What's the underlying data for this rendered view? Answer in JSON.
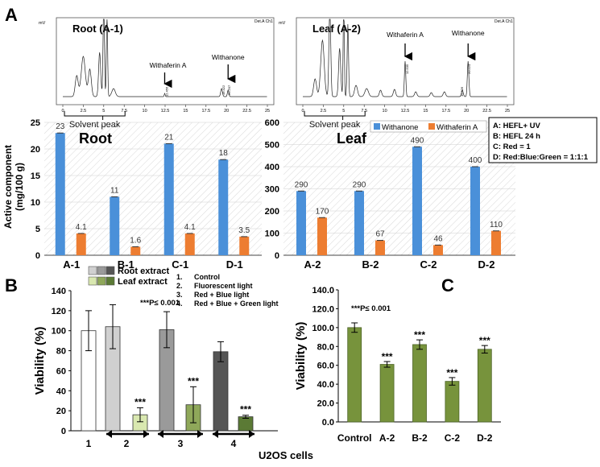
{
  "panels": {
    "A": "A",
    "B": "B",
    "C": "C"
  },
  "chromatograms": [
    {
      "title": "Root (A-1)",
      "detector": "Det.A Ch1",
      "unit": "mV",
      "xticks": [
        "0",
        "2.5",
        "5",
        "7.5",
        "10",
        "12.5",
        "15",
        "17.5",
        "20",
        "22.5",
        "25"
      ],
      "peak_labels": [
        {
          "name": "Withaferin A",
          "rt": "12.456"
        },
        {
          "name": "Withanone",
          "rt": "20.207"
        }
      ],
      "extra_rt": "19.422",
      "solvent_label": "Solvent peak"
    },
    {
      "title": "Leaf (A-2)",
      "detector": "Det.A Ch1",
      "unit": "mV",
      "xticks": [
        "0",
        "2.5",
        "5",
        "7.5",
        "10",
        "12.5",
        "15",
        "17.5",
        "20",
        "22.5",
        "25"
      ],
      "peak_labels": [
        {
          "name": "Withaferin A",
          "rt": "12.535"
        },
        {
          "name": "Withanone",
          "rt": "20.224"
        }
      ],
      "extra_rt": "19.526",
      "solvent_label": "Solvent peak"
    }
  ],
  "chart_data": [
    {
      "id": "A-root",
      "type": "bar",
      "title": "Root",
      "ylabel": "Active component (mg/100 g)",
      "categories": [
        "A-1",
        "B-1",
        "C-1",
        "D-1"
      ],
      "ylim": [
        0,
        25
      ],
      "yticks": [
        0,
        5,
        10,
        15,
        20,
        25
      ],
      "series": [
        {
          "name": "Withanone",
          "color": "#4a90d9",
          "values": [
            23,
            11,
            21,
            18
          ],
          "labels": [
            "23",
            "11",
            "21",
            "18"
          ]
        },
        {
          "name": "Withaferin A",
          "color": "#ed7d31",
          "values": [
            4.1,
            1.6,
            4.1,
            3.5
          ],
          "labels": [
            "4.1",
            "1.6",
            "4.1",
            "3.5"
          ]
        }
      ]
    },
    {
      "id": "A-leaf",
      "type": "bar",
      "title": "Leaf",
      "categories": [
        "A-2",
        "B-2",
        "C-2",
        "D-2"
      ],
      "ylim": [
        0,
        600
      ],
      "yticks": [
        0,
        100,
        200,
        300,
        400,
        500,
        600
      ],
      "series": [
        {
          "name": "Withanone",
          "color": "#4a90d9",
          "values": [
            290,
            290,
            490,
            400
          ],
          "labels": [
            "290",
            "290",
            "490",
            "400"
          ]
        },
        {
          "name": "Withaferin A",
          "color": "#ed7d31",
          "values": [
            170,
            67,
            46,
            110
          ],
          "labels": [
            "170",
            "67",
            "46",
            "110"
          ]
        }
      ],
      "legend": [
        "Withanone",
        "Withaferin A"
      ],
      "conditions": [
        "A: HEFL+ UV",
        "B: HEFL 24 h",
        "C: Red = 1",
        "D: Red:Blue:Green = 1:1:1"
      ]
    },
    {
      "id": "B",
      "type": "bar",
      "ylabel": "Viability (%)",
      "xlabel": "U2OS cells",
      "ylim": [
        0,
        140
      ],
      "yticks": [
        0,
        20,
        40,
        60,
        80,
        100,
        120,
        140
      ],
      "groups": [
        "1",
        "2",
        "3",
        "4"
      ],
      "bars": [
        {
          "group": "1",
          "type": "control",
          "value": 100,
          "err": 20,
          "color": "#ffffff",
          "sig": ""
        },
        {
          "group": "2",
          "type": "root",
          "value": 104,
          "err": 22,
          "color": "#d0d0d0",
          "sig": ""
        },
        {
          "group": "2",
          "type": "leaf",
          "value": 16,
          "err": 7,
          "color": "#d9e8b0",
          "sig": "***"
        },
        {
          "group": "3",
          "type": "root",
          "value": 101,
          "err": 18,
          "color": "#9a9a9a",
          "sig": ""
        },
        {
          "group": "3",
          "type": "leaf",
          "value": 26,
          "err": 18,
          "color": "#8fa85a",
          "sig": "***"
        },
        {
          "group": "4",
          "type": "root",
          "value": 79,
          "err": 10,
          "color": "#555555",
          "sig": ""
        },
        {
          "group": "4",
          "type": "leaf",
          "value": 14,
          "err": 1.5,
          "color": "#5b7a35",
          "sig": "***"
        }
      ],
      "legend": [
        {
          "label": "Root extract",
          "colors": [
            "#d0d0d0",
            "#9a9a9a",
            "#555555"
          ]
        },
        {
          "label": "Leaf extract",
          "colors": [
            "#d9e8b0",
            "#8fa85a",
            "#5b7a35"
          ]
        }
      ],
      "conditions": [
        "1.",
        "Control",
        "2.",
        "Fluorescent light",
        "3.",
        "Red + Blue light",
        "4.",
        "Red + Blue + Green light"
      ],
      "pvalue": "***P≤ 0.001"
    },
    {
      "id": "C",
      "type": "bar",
      "ylabel": "Viability (%)",
      "categories": [
        "Control",
        "A-2",
        "B-2",
        "C-2",
        "D-2"
      ],
      "values": [
        100,
        61,
        82,
        43,
        77
      ],
      "errors": [
        5,
        3,
        5,
        4,
        4
      ],
      "sig": [
        "",
        "***",
        "***",
        "***",
        "***"
      ],
      "color": "#77933c",
      "ylim": [
        0,
        140
      ],
      "yticks": [
        "0.0",
        "20.0",
        "40.0",
        "60.0",
        "80.0",
        "100.0",
        "120.0",
        "140.0"
      ],
      "pvalue": "***P≤ 0.001"
    }
  ]
}
